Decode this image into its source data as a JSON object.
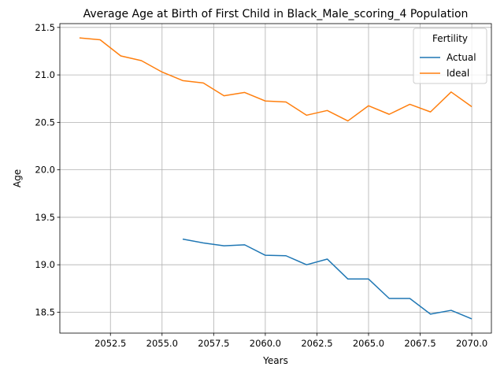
{
  "chart_data": {
    "type": "line",
    "title": "Average Age at Birth of First Child in Black_Male_scoring_4 Population",
    "xlabel": "Years",
    "ylabel": "Age",
    "xlim": [
      2050.05,
      2070.95
    ],
    "ylim": [
      18.28,
      21.54
    ],
    "xticks": [
      2052.5,
      2055.0,
      2057.5,
      2060.0,
      2062.5,
      2065.0,
      2067.5,
      2070.0
    ],
    "xtick_labels": [
      "2052.5",
      "2055.0",
      "2057.5",
      "2060.0",
      "2062.5",
      "2065.0",
      "2067.5",
      "2070.0"
    ],
    "yticks": [
      18.5,
      19.0,
      19.5,
      20.0,
      20.5,
      21.0,
      21.5
    ],
    "ytick_labels": [
      "18.5",
      "19.0",
      "19.5",
      "20.0",
      "20.5",
      "21.0",
      "21.5"
    ],
    "grid": true,
    "legend": {
      "title": "Fertility",
      "placement": "top-right"
    },
    "series": [
      {
        "name": "Actual",
        "color": "#1f77b4",
        "x": [
          2056,
          2057,
          2058,
          2059,
          2060,
          2061,
          2062,
          2063,
          2064,
          2065,
          2066,
          2067,
          2068,
          2069,
          2070
        ],
        "values": [
          19.27,
          19.23,
          19.2,
          19.21,
          19.1,
          19.095,
          19.0,
          19.06,
          18.85,
          18.85,
          18.645,
          18.645,
          18.48,
          18.52,
          18.43
        ]
      },
      {
        "name": "Ideal",
        "color": "#ff7f0e",
        "x": [
          2051,
          2052,
          2053,
          2054,
          2055,
          2056,
          2057,
          2058,
          2059,
          2060,
          2061,
          2062,
          2063,
          2064,
          2065,
          2066,
          2067,
          2068,
          2069,
          2070
        ],
        "values": [
          21.39,
          21.37,
          21.2,
          21.15,
          21.03,
          20.94,
          20.915,
          20.78,
          20.815,
          20.725,
          20.715,
          20.575,
          20.625,
          20.515,
          20.675,
          20.585,
          20.69,
          20.61,
          20.82,
          20.665
        ]
      }
    ]
  }
}
